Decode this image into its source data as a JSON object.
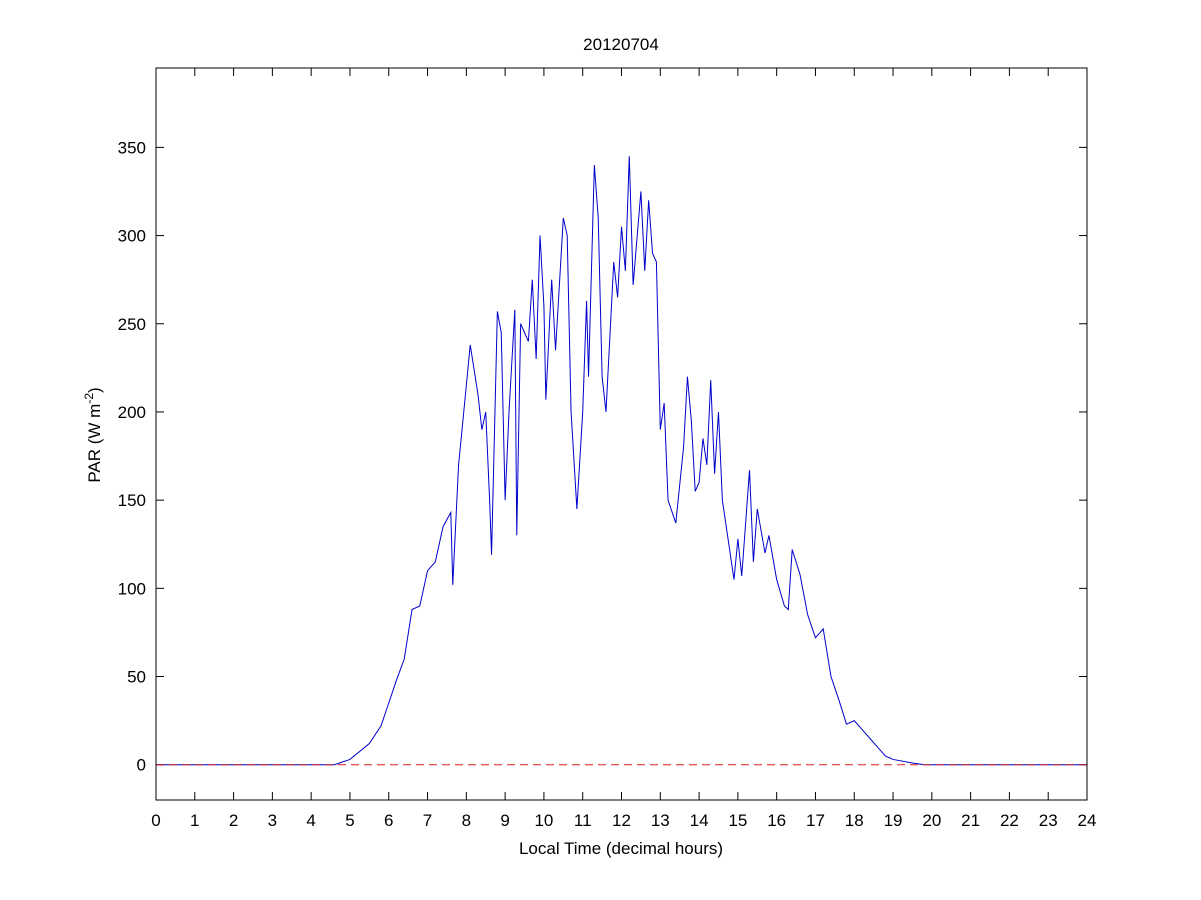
{
  "chart_data": {
    "type": "line",
    "title": "20120704",
    "xlabel": "Local Time (decimal hours)",
    "ylabel": [
      "PAR (W m",
      "-2",
      ")"
    ],
    "xlim": [
      0,
      24
    ],
    "ylim": [
      -20,
      395
    ],
    "xticks": [
      0,
      1,
      2,
      3,
      4,
      5,
      6,
      7,
      8,
      9,
      10,
      11,
      12,
      13,
      14,
      15,
      16,
      17,
      18,
      19,
      20,
      21,
      22,
      23,
      24
    ],
    "yticks": [
      0,
      50,
      100,
      150,
      200,
      250,
      300,
      350
    ],
    "series": [
      {
        "color": "#0000cc",
        "x": [
          0,
          4.6,
          5,
          5.5,
          5.8,
          6,
          6.2,
          6.4,
          6.6,
          6.8,
          7,
          7.2,
          7.4,
          7.6,
          7.65,
          7.8,
          8,
          8.1,
          8.3,
          8.4,
          8.5,
          8.6,
          8.65,
          8.8,
          8.9,
          9.0,
          9.1,
          9.25,
          9.3,
          9.4,
          9.6,
          9.7,
          9.8,
          9.9,
          10.0,
          10.05,
          10.2,
          10.3,
          10.5,
          10.6,
          10.7,
          10.85,
          11.0,
          11.1,
          11.15,
          11.3,
          11.4,
          11.5,
          11.6,
          11.8,
          11.9,
          12.0,
          12.1,
          12.2,
          12.3,
          12.5,
          12.6,
          12.7,
          12.8,
          12.9,
          13.0,
          13.1,
          13.2,
          13.4,
          13.6,
          13.7,
          13.8,
          13.9,
          14.0,
          14.1,
          14.2,
          14.3,
          14.4,
          14.5,
          14.6,
          14.8,
          14.9,
          15.0,
          15.1,
          15.3,
          15.4,
          15.5,
          15.7,
          15.8,
          16.0,
          16.2,
          16.3,
          16.4,
          16.6,
          16.8,
          17.0,
          17.2,
          17.4,
          17.6,
          17.8,
          18.0,
          18.2,
          18.4,
          18.6,
          18.8,
          19.0,
          19.5,
          19.8,
          24
        ],
        "values": [
          0,
          0,
          3,
          12,
          22,
          35,
          48,
          60,
          88,
          90,
          110,
          115,
          135,
          143,
          102,
          170,
          215,
          238,
          210,
          190,
          200,
          150,
          119,
          257,
          245,
          150,
          200,
          258,
          130,
          250,
          240,
          275,
          230,
          300,
          260,
          207,
          275,
          235,
          310,
          300,
          200,
          145,
          200,
          263,
          220,
          340,
          310,
          220,
          200,
          285,
          265,
          305,
          280,
          345,
          272,
          325,
          280,
          320,
          290,
          285,
          190,
          205,
          150,
          137,
          180,
          220,
          195,
          155,
          160,
          185,
          170,
          218,
          165,
          200,
          150,
          120,
          105,
          128,
          107,
          167,
          115,
          145,
          120,
          130,
          105,
          90,
          88,
          122,
          108,
          85,
          72,
          77,
          50,
          37,
          23,
          25,
          20,
          15,
          10,
          5,
          3,
          1,
          0,
          0
        ]
      },
      {
        "color": "#dd2222",
        "dash": true,
        "x": [
          0,
          24
        ],
        "values": [
          0,
          0
        ]
      }
    ]
  }
}
